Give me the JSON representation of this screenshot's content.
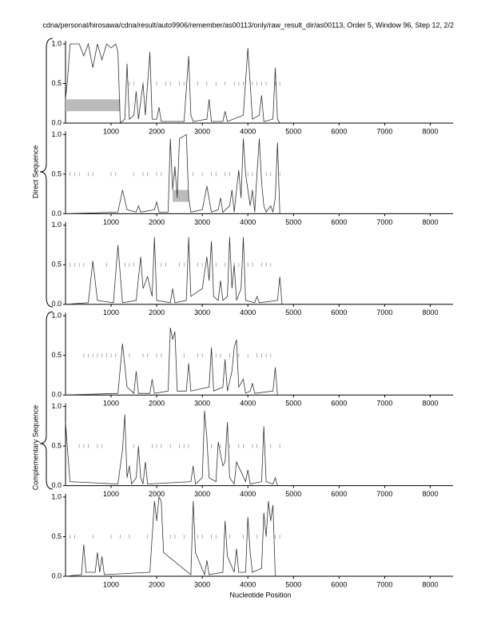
{
  "title": "cdna/personal/hirosawa/cdna/result/auto9906/remember/as00113/only/raw_result_dir/as00113, Order 5, Window 96, Step 12, 2/2",
  "xlabel": "Nucleotide Position",
  "group_labels": [
    "Direct Sequence",
    "Complementary Sequence"
  ],
  "chart_data": [
    {
      "type": "line",
      "color": "#333333",
      "xlim": [
        0,
        8500
      ],
      "ylim": [
        0,
        1
      ],
      "xticks": [
        1000,
        2000,
        3000,
        4000,
        5000,
        6000,
        7000,
        8000
      ],
      "yticks": [
        {
          "value": 1,
          "label": "1.0"
        },
        0.5,
        {
          "value": 0,
          "label": "0.0"
        }
      ],
      "x": [
        0,
        50,
        100,
        300,
        400,
        500,
        600,
        700,
        800,
        900,
        1000,
        1100,
        1150,
        1200,
        1300,
        1350,
        1400,
        1500,
        1550,
        1600,
        1700,
        1750,
        1850,
        1900,
        2000,
        2050,
        2100,
        2600,
        2700,
        2750,
        2800,
        3100,
        3150,
        3200,
        3450,
        3500,
        3550,
        3900,
        4000,
        4050,
        4100,
        4250,
        4300,
        4350,
        4550,
        4600,
        4650,
        4700
      ],
      "values": [
        0.3,
        0.6,
        1.0,
        1.0,
        0.85,
        1.0,
        0.7,
        1.0,
        0.8,
        1.0,
        0.95,
        1.0,
        0.9,
        0,
        0.05,
        0.75,
        0.05,
        0.1,
        0.4,
        0.05,
        0.5,
        0.1,
        0.9,
        0.05,
        0.05,
        0.2,
        0.02,
        0.02,
        0.85,
        0.1,
        0.02,
        0.05,
        0.3,
        0.02,
        0.02,
        0.15,
        0.02,
        0.1,
        0.95,
        0.5,
        0.05,
        0.1,
        0.35,
        0.02,
        0.05,
        0.7,
        0.05,
        0
      ],
      "markers": [
        1400,
        1500,
        1700,
        1800,
        2000,
        2200,
        2300,
        2500,
        2600,
        2900,
        3100,
        3300,
        3500,
        3700,
        3800,
        3900,
        4100,
        4200,
        4300,
        4400,
        4600,
        4700
      ],
      "bands": [
        {
          "x": [
            0,
            1200
          ],
          "y": [
            0.15,
            0.3
          ]
        }
      ]
    },
    {
      "type": "line",
      "color": "#333333",
      "xlim": [
        0,
        8500
      ],
      "ylim": [
        0,
        1
      ],
      "xticks": [
        1000,
        2000,
        3000,
        4000,
        5000,
        6000,
        7000,
        8000
      ],
      "yticks": [
        {
          "value": 1,
          "label": "1.0"
        },
        0.5,
        {
          "value": 0,
          "label": "0.0"
        }
      ],
      "x": [
        0,
        1150,
        1250,
        1350,
        1550,
        1600,
        1650,
        1950,
        2000,
        2050,
        2250,
        2300,
        2350,
        2400,
        2450,
        2500,
        2650,
        2700,
        2750,
        3000,
        3100,
        3200,
        3350,
        3400,
        3450,
        3600,
        3650,
        3700,
        3750,
        3800,
        3850,
        3900,
        3950,
        4050,
        4100,
        4150,
        4200,
        4250,
        4300,
        4350,
        4400,
        4500,
        4550,
        4600,
        4650,
        4700
      ],
      "values": [
        0,
        0.02,
        0.3,
        0.05,
        0.02,
        0.1,
        0.02,
        0.05,
        0.15,
        0.02,
        0.02,
        0.95,
        0.3,
        0.6,
        0.2,
        0.95,
        1.0,
        0.2,
        0.02,
        0.05,
        0.35,
        0.02,
        0.05,
        0.2,
        0.02,
        0.1,
        0.3,
        0.02,
        0.3,
        0.55,
        0.2,
        0.95,
        0.5,
        0.1,
        0.3,
        0.02,
        0.5,
        0.95,
        0.4,
        0.1,
        0.02,
        0.1,
        0.02,
        0.2,
        0.9,
        0
      ],
      "markers": [
        100,
        200,
        300,
        500,
        600,
        1000,
        1100,
        1500,
        1700,
        1800,
        2000,
        2100,
        2400,
        2800,
        3000,
        3200,
        3300,
        3500,
        3600,
        3800,
        4000,
        4100,
        4400,
        4500,
        4700
      ],
      "bands": [
        {
          "x": [
            2350,
            2700
          ],
          "y": [
            0.15,
            0.3
          ]
        }
      ]
    },
    {
      "type": "line",
      "color": "#333333",
      "xlim": [
        0,
        8500
      ],
      "ylim": [
        0,
        1
      ],
      "xticks": [
        1000,
        2000,
        3000,
        4000,
        5000,
        6000,
        7000,
        8000
      ],
      "yticks": [
        {
          "value": 1,
          "label": "1.0"
        },
        0.5,
        {
          "value": 0,
          "label": "0.0"
        }
      ],
      "x": [
        0,
        500,
        600,
        700,
        1050,
        1150,
        1250,
        1550,
        1650,
        1700,
        1800,
        1900,
        1950,
        2000,
        2300,
        2350,
        2400,
        2650,
        2700,
        2750,
        3000,
        3100,
        3150,
        3200,
        3250,
        3350,
        3400,
        3450,
        3550,
        3600,
        3650,
        3700,
        3750,
        3850,
        3900,
        3950,
        4150,
        4200,
        4250,
        4650,
        4700,
        4750
      ],
      "values": [
        0,
        0.02,
        0.55,
        0.05,
        0.02,
        0.75,
        0.02,
        0.05,
        0.6,
        0.2,
        0.35,
        0.1,
        0.85,
        0.05,
        0.02,
        0.2,
        0.02,
        0.05,
        0.85,
        0.1,
        0.2,
        0.6,
        0.3,
        0.8,
        0.1,
        0.05,
        0.3,
        0.05,
        0.1,
        0.85,
        0.2,
        0.5,
        0.05,
        0.2,
        0.85,
        0.05,
        0.02,
        0.1,
        0.02,
        0.05,
        0.35,
        0
      ],
      "markers": [
        100,
        200,
        300,
        400,
        900,
        1300,
        1400,
        1500,
        2100,
        2200,
        2500,
        2600,
        2900,
        3000,
        3300,
        3500,
        3700,
        3800,
        4000,
        4100,
        4300,
        4400,
        4500
      ],
      "bands": []
    },
    {
      "type": "line",
      "color": "#333333",
      "xlim": [
        0,
        8500
      ],
      "ylim": [
        0,
        1
      ],
      "xticks": [
        1000,
        2000,
        3000,
        4000,
        5000,
        6000,
        7000,
        8000
      ],
      "yticks": [
        {
          "value": 1,
          "label": "1.0"
        },
        0.5,
        {
          "value": 0,
          "label": "0.0"
        }
      ],
      "x": [
        0,
        1150,
        1250,
        1350,
        1500,
        1550,
        1600,
        1850,
        1900,
        1950,
        2250,
        2300,
        2350,
        2400,
        2450,
        2650,
        2700,
        2750,
        3150,
        3200,
        3250,
        3450,
        3500,
        3550,
        3650,
        3700,
        3750,
        3800,
        3900,
        3950,
        4050,
        4100,
        4150,
        4550,
        4600,
        4650
      ],
      "values": [
        0,
        0.02,
        0.65,
        0.1,
        0.02,
        0.3,
        0.02,
        0.02,
        0.2,
        0.02,
        0.05,
        0.85,
        0.7,
        0.8,
        0.05,
        0.05,
        0.4,
        0.05,
        0.1,
        0.6,
        0.05,
        0.1,
        0.45,
        0.05,
        0.3,
        0.6,
        0.7,
        0.1,
        0.2,
        0.02,
        0.05,
        0.15,
        0.02,
        0.05,
        0.35,
        0
      ],
      "markers": [
        400,
        500,
        600,
        700,
        800,
        900,
        1000,
        1100,
        1400,
        1700,
        1800,
        2000,
        2100,
        2600,
        2900,
        3000,
        3300,
        3400,
        3600,
        3800,
        4000,
        4200,
        4300,
        4400,
        4500
      ],
      "bands": []
    },
    {
      "type": "line",
      "color": "#333333",
      "xlim": [
        0,
        8500
      ],
      "ylim": [
        0,
        1
      ],
      "xticks": [
        1000,
        2000,
        3000,
        4000,
        5000,
        6000,
        7000,
        8000
      ],
      "yticks": [
        {
          "value": 1,
          "label": "1.0"
        },
        0.5,
        {
          "value": 0,
          "label": "0.0"
        }
      ],
      "x": [
        0,
        50,
        100,
        1150,
        1250,
        1300,
        1350,
        1400,
        1450,
        1550,
        1600,
        1650,
        1700,
        1750,
        1800,
        2750,
        2800,
        2850,
        3000,
        3050,
        3100,
        3150,
        3300,
        3350,
        3450,
        3500,
        3550,
        3600,
        3700,
        3750,
        3950,
        4000,
        4050,
        4300,
        4350,
        4400,
        4550,
        4600,
        4650
      ],
      "values": [
        0.8,
        0.4,
        0.05,
        0.02,
        0.45,
        0.9,
        0.1,
        0.25,
        0.02,
        0.1,
        0.5,
        0.1,
        0.02,
        0.3,
        0.02,
        0.05,
        0.25,
        0.02,
        0.1,
        0.95,
        0.6,
        0.1,
        0.05,
        0.55,
        0.25,
        0.3,
        0.8,
        0.1,
        0.02,
        0.3,
        0.05,
        0.2,
        0.02,
        0.05,
        0.75,
        0.05,
        0.02,
        0.1,
        0
      ],
      "markers": [
        300,
        400,
        500,
        700,
        800,
        1500,
        1900,
        2000,
        2100,
        2300,
        2500,
        2600,
        2700,
        3200,
        3400,
        3600,
        3800,
        3900,
        4100,
        4200,
        4500,
        4700
      ],
      "bands": []
    },
    {
      "type": "line",
      "color": "#333333",
      "xlim": [
        0,
        8500
      ],
      "ylim": [
        0,
        1
      ],
      "xticks": [
        1000,
        2000,
        3000,
        4000,
        5000,
        6000,
        7000,
        8000
      ],
      "yticks": [
        {
          "value": 1,
          "label": "1.0"
        },
        0.5,
        {
          "value": 0,
          "label": "0.0"
        }
      ],
      "x": [
        0,
        350,
        400,
        450,
        650,
        700,
        750,
        800,
        850,
        1850,
        1900,
        1950,
        2000,
        2050,
        2100,
        2150,
        2750,
        2800,
        2850,
        3050,
        3100,
        3150,
        3450,
        3500,
        3550,
        3700,
        3750,
        3800,
        3950,
        4000,
        4050,
        4100,
        4300,
        4350,
        4400,
        4450,
        4500,
        4550,
        4600
      ],
      "values": [
        0,
        0.02,
        0.4,
        0.05,
        0.05,
        0.3,
        0.05,
        0.25,
        0.02,
        0.05,
        0.5,
        0.95,
        0.7,
        1.0,
        0.95,
        0.3,
        0.02,
        0.95,
        0.3,
        0.02,
        0.2,
        0.02,
        0.05,
        0.7,
        0.25,
        0.05,
        0.35,
        0.05,
        0.05,
        0.75,
        0.3,
        0.05,
        0.1,
        0.8,
        0.5,
        0.95,
        0.7,
        0.9,
        0
      ],
      "markers": [
        100,
        200,
        600,
        1000,
        1200,
        1400,
        1800,
        2300,
        2400,
        2600,
        2900,
        3000,
        3200,
        3300,
        3600,
        3900,
        4200,
        4600,
        4700
      ],
      "bands": []
    }
  ]
}
